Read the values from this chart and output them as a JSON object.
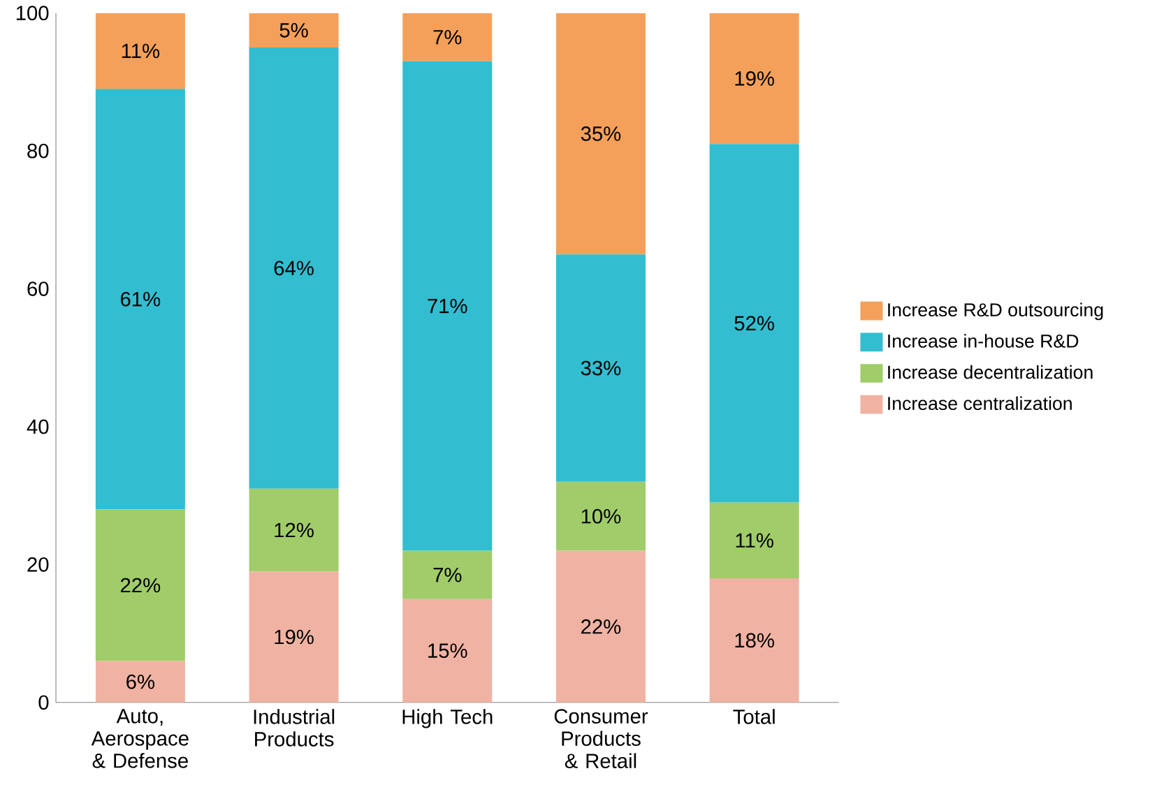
{
  "chart_data": {
    "type": "bar",
    "stacked": true,
    "categories": [
      "Auto, Aerospace & Defense",
      "Industrial Products",
      "High Tech",
      "Consumer Products & Retail",
      "Total"
    ],
    "series": [
      {
        "name": "Increase centralization",
        "color": "#f0b3a3",
        "values": [
          6,
          19,
          15,
          22,
          18
        ],
        "value_labels": [
          "6%",
          "19%",
          "15%",
          "22%",
          "18%"
        ]
      },
      {
        "name": "Increase decentralization",
        "color": "#a0cc6a",
        "values": [
          22,
          12,
          7,
          10,
          11
        ],
        "value_labels": [
          "22%",
          "12%",
          "7%",
          "10%",
          "11%"
        ]
      },
      {
        "name": "Increase in-house R&D",
        "color": "#33bdd0",
        "values": [
          61,
          64,
          71,
          33,
          52
        ],
        "value_labels": [
          "61%",
          "64%",
          "71%",
          "33%",
          "52%"
        ]
      },
      {
        "name": "Increase R&D outsourcing",
        "color": "#f5a05a",
        "values": [
          11,
          5,
          7,
          35,
          19
        ],
        "value_labels": [
          "11%",
          "5%",
          "7%",
          "35%",
          "19%"
        ]
      }
    ],
    "ylim": [
      0,
      100
    ],
    "yticks": [
      0,
      20,
      40,
      60,
      80,
      100
    ],
    "legend": "right"
  }
}
